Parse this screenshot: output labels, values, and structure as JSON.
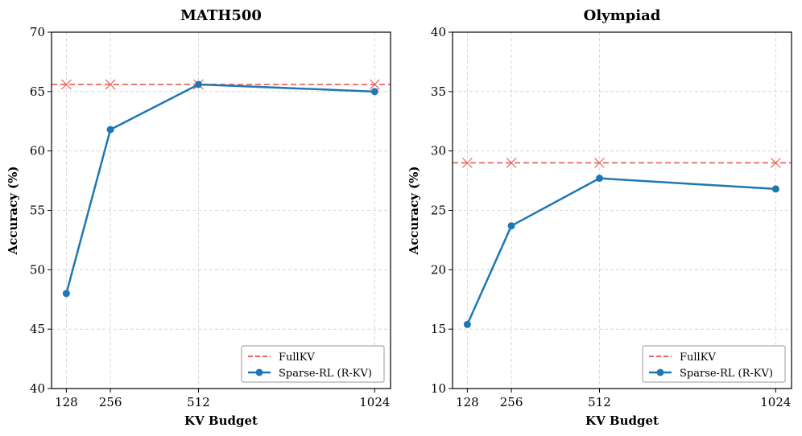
{
  "chart_data": [
    {
      "type": "line",
      "title": "MATH500",
      "xlabel": "KV Budget",
      "ylabel": "Accuracy (%)",
      "x": [
        128,
        256,
        512,
        1024
      ],
      "x_tick_labels": [
        "128",
        "256",
        "512",
        "1024"
      ],
      "xlim": [
        85,
        1070
      ],
      "ylim": [
        40,
        70
      ],
      "yticks": [
        40,
        45,
        50,
        55,
        60,
        65,
        70
      ],
      "grid": true,
      "legend_position": "bottom-right",
      "series": [
        {
          "name": "FullKV",
          "style": "dashed",
          "marker": "x",
          "color": "#e8625c",
          "values": [
            65.6,
            65.6,
            65.6,
            65.6
          ]
        },
        {
          "name": "Sparse-RL (R-KV)",
          "style": "solid",
          "marker": "o",
          "color": "#1f77b4",
          "values": [
            48.0,
            61.8,
            65.6,
            65.0
          ]
        }
      ]
    },
    {
      "type": "line",
      "title": "Olympiad",
      "xlabel": "KV Budget",
      "ylabel": "Accuracy (%)",
      "x": [
        128,
        256,
        512,
        1024
      ],
      "x_tick_labels": [
        "128",
        "256",
        "512",
        "1024"
      ],
      "xlim": [
        85,
        1070
      ],
      "ylim": [
        10,
        40
      ],
      "yticks": [
        10,
        15,
        20,
        25,
        30,
        35,
        40
      ],
      "grid": true,
      "legend_position": "bottom-right",
      "series": [
        {
          "name": "FullKV",
          "style": "dashed",
          "marker": "x",
          "color": "#e8625c",
          "values": [
            29.0,
            29.0,
            29.0,
            29.0
          ]
        },
        {
          "name": "Sparse-RL (R-KV)",
          "style": "solid",
          "marker": "o",
          "color": "#1f77b4",
          "values": [
            15.4,
            23.7,
            27.7,
            26.8
          ]
        }
      ]
    }
  ]
}
